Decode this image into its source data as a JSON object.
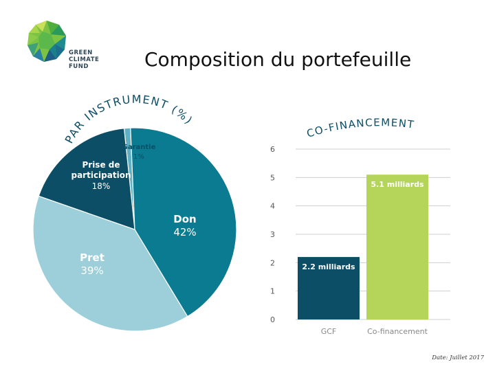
{
  "header": {
    "title": "Composition du portefeuille",
    "logo_text": [
      "GREEN",
      "CLIMATE",
      "FUND"
    ]
  },
  "footer": {
    "date_note": "Date: Juillet 2017"
  },
  "colors": {
    "don": "#0a7b90",
    "pret": "#9ccfda",
    "participation": "#0b4e66",
    "garantie": "#5fb0c2",
    "gcf_bar": "#0b4e66",
    "cofin_bar": "#b5d55a",
    "grid": "#cfcfcf",
    "arc_text": "#0b4e66"
  },
  "chart_data": [
    {
      "type": "pie",
      "title": "PAR INSTRUMENT (%)",
      "slices": [
        {
          "key": "garantie",
          "label": "Garantie",
          "value": 1,
          "value_label": "1%"
        },
        {
          "key": "don",
          "label": "Don",
          "value": 42,
          "value_label": "42%"
        },
        {
          "key": "pret",
          "label": "Pret",
          "value": 39,
          "value_label": "39%"
        },
        {
          "key": "participation",
          "label": "Prise de participation",
          "value": 18,
          "value_label": "18%"
        }
      ]
    },
    {
      "type": "bar",
      "title": "CO-FINANCEMENT",
      "categories": [
        "GCF",
        "Co-financement"
      ],
      "values": [
        2.2,
        5.1
      ],
      "data_labels": [
        "2.2 milliards",
        "5.1 milliards"
      ],
      "ylim": [
        0,
        6
      ],
      "yticks": [
        0,
        1,
        2,
        3,
        4,
        5,
        6
      ],
      "grid": true
    }
  ]
}
